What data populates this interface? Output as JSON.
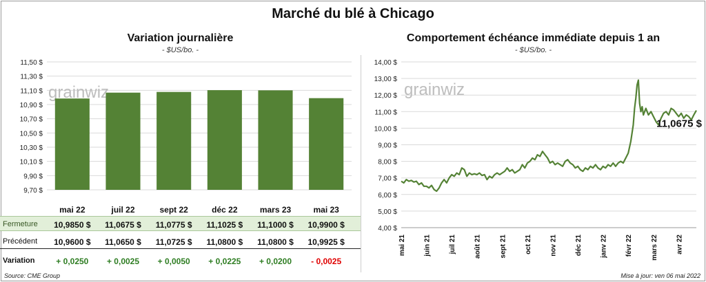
{
  "title": "Marché du blé à Chicago",
  "source": "Source: CME Group",
  "updated": "Mise à jour: ven 06 mai 2022",
  "watermark": "grainwiz",
  "colors": {
    "bar": "#548235",
    "line": "#548235",
    "closeRowBg": "#e2efd9",
    "positive": "#2e7d22",
    "negative": "#e00000"
  },
  "left": {
    "title": "Variation  journalière",
    "unit": "- $US/bo. -",
    "table": {
      "rows": [
        {
          "label": "Fermeture",
          "values": [
            "10,9850  $",
            "11,0675  $",
            "11,0775  $",
            "11,1025  $",
            "11,1000  $",
            "10,9900  $"
          ]
        },
        {
          "label": "Précédent",
          "values": [
            "10,9600  $",
            "11,0650  $",
            "11,0725  $",
            "11,0800  $",
            "11,0800  $",
            "10,9925  $"
          ]
        },
        {
          "label": "Variation",
          "values": [
            "+ 0,0250",
            "+ 0,0025",
            "+ 0,0050",
            "+ 0,0225",
            "+ 0,0200",
            "- 0,0025"
          ]
        }
      ],
      "variationSigns": [
        "pos",
        "pos",
        "pos",
        "pos",
        "pos",
        "neg"
      ]
    }
  },
  "right": {
    "title": "Comportement  échéance immédiate depuis 1 an",
    "unit": "- $US/bo. -",
    "last_label": "11,0675 $"
  },
  "chart_data": [
    {
      "type": "bar",
      "categories": [
        "mai 22",
        "juil 22",
        "sept 22",
        "déc 22",
        "mars 23",
        "mai 23"
      ],
      "values": [
        10.985,
        11.0675,
        11.0775,
        11.1025,
        11.1,
        10.99
      ],
      "ylim": [
        9.7,
        11.5
      ],
      "yticks": [
        9.7,
        9.9,
        10.1,
        10.3,
        10.5,
        10.7,
        10.9,
        11.1,
        11.3,
        11.5
      ],
      "ytick_labels": [
        "9,70 $",
        "9,90 $",
        "10,10 $",
        "10,30 $",
        "10,50 $",
        "10,70 $",
        "10,90 $",
        "11,10 $",
        "11,30 $",
        "11,50 $"
      ],
      "grid": true
    },
    {
      "type": "line",
      "x_labels": [
        "mai 21",
        "juin 21",
        "juil 21",
        "août 21",
        "sept 21",
        "oct 21",
        "nov 21",
        "déc 21",
        "janv 22",
        "févr 22",
        "mars 22",
        "avr 22"
      ],
      "ylim": [
        4,
        14
      ],
      "yticks": [
        4,
        5,
        6,
        7,
        8,
        9,
        10,
        11,
        12,
        13,
        14
      ],
      "ytick_labels": [
        "4,00 $",
        "5,00 $",
        "6,00 $",
        "7,00 $",
        "8,00 $",
        "9,00 $",
        "10,00 $",
        "11,00 $",
        "12,00 $",
        "13,00 $",
        "14,00 $"
      ],
      "x": [
        0,
        0.1,
        0.2,
        0.3,
        0.4,
        0.5,
        0.6,
        0.7,
        0.8,
        0.9,
        1.0,
        1.1,
        1.2,
        1.3,
        1.4,
        1.5,
        1.6,
        1.7,
        1.8,
        1.9,
        2.0,
        2.1,
        2.2,
        2.3,
        2.4,
        2.5,
        2.6,
        2.7,
        2.8,
        2.9,
        3.0,
        3.1,
        3.2,
        3.3,
        3.4,
        3.5,
        3.6,
        3.7,
        3.8,
        3.9,
        4.0,
        4.1,
        4.2,
        4.3,
        4.4,
        4.5,
        4.6,
        4.7,
        4.8,
        4.9,
        5.0,
        5.1,
        5.2,
        5.3,
        5.4,
        5.5,
        5.6,
        5.7,
        5.8,
        5.9,
        6.0,
        6.1,
        6.2,
        6.3,
        6.4,
        6.5,
        6.6,
        6.7,
        6.8,
        6.9,
        7.0,
        7.1,
        7.2,
        7.3,
        7.4,
        7.5,
        7.6,
        7.7,
        7.8,
        7.9,
        8.0,
        8.1,
        8.2,
        8.3,
        8.4,
        8.5,
        8.6,
        8.7,
        8.8,
        8.9,
        9.0,
        9.1,
        9.2,
        9.25,
        9.3,
        9.35,
        9.4,
        9.45,
        9.5,
        9.55,
        9.6,
        9.7,
        9.8,
        9.9,
        10.0,
        10.1,
        10.2,
        10.3,
        10.4,
        10.5,
        10.6,
        10.7,
        10.8,
        10.9,
        11.0,
        11.1,
        11.2,
        11.3,
        11.4,
        11.5,
        11.6,
        11.7
      ],
      "values": [
        6.8,
        6.7,
        6.9,
        6.8,
        6.85,
        6.75,
        6.8,
        6.6,
        6.7,
        6.5,
        6.5,
        6.4,
        6.55,
        6.3,
        6.2,
        6.4,
        6.7,
        6.9,
        6.7,
        7.0,
        7.2,
        7.1,
        7.3,
        7.2,
        7.6,
        7.5,
        7.1,
        7.3,
        7.2,
        7.25,
        7.2,
        7.3,
        7.15,
        7.2,
        6.9,
        7.1,
        7.0,
        7.2,
        7.3,
        7.2,
        7.3,
        7.4,
        7.6,
        7.4,
        7.5,
        7.3,
        7.4,
        7.5,
        7.8,
        7.6,
        7.9,
        8.0,
        8.2,
        8.1,
        8.4,
        8.3,
        8.6,
        8.4,
        8.2,
        7.9,
        8.0,
        7.8,
        7.9,
        7.8,
        7.7,
        8.0,
        8.1,
        7.9,
        7.8,
        7.6,
        7.7,
        7.5,
        7.4,
        7.6,
        7.5,
        7.7,
        7.6,
        7.8,
        7.6,
        7.5,
        7.7,
        7.6,
        7.8,
        7.7,
        7.9,
        7.7,
        7.9,
        8.0,
        7.9,
        8.2,
        8.5,
        9.2,
        10.2,
        11.2,
        11.8,
        12.6,
        12.9,
        11.5,
        11.0,
        11.3,
        10.8,
        11.2,
        10.8,
        11.0,
        10.7,
        10.4,
        10.2,
        10.6,
        10.9,
        11.0,
        10.8,
        11.2,
        11.1,
        10.9,
        10.7,
        10.9,
        10.6,
        10.8,
        10.7,
        10.5,
        10.8,
        11.07
      ],
      "grid": true
    }
  ]
}
